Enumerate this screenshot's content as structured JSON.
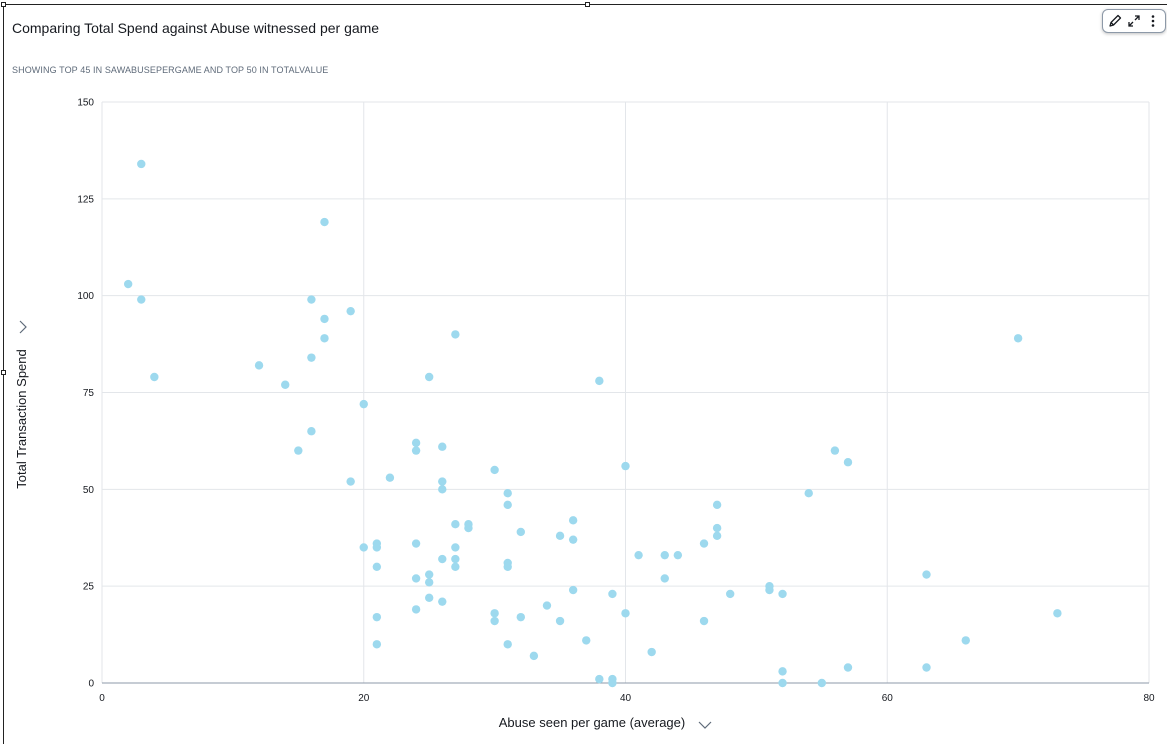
{
  "visual": {
    "title": "Comparing Total Spend against Abuse witnessed per game",
    "subtitle": "SHOWING TOP 45 IN SAWABUSEPERGAME AND TOP 50 IN TOTALVALUE"
  },
  "toolbar": {
    "icons": [
      "pencil-icon",
      "expand-icon",
      "more-vertical-icon"
    ]
  },
  "colors": {
    "point": "#9dd9ee",
    "grid": "#e3e6ea",
    "axis": "#16191f"
  },
  "chart_data": {
    "type": "scatter",
    "title": "Comparing Total Spend against Abuse witnessed per game",
    "xlabel": "Abuse seen per game (average)",
    "ylabel": "Total Transaction Spend",
    "xlim": [
      0,
      80
    ],
    "ylim": [
      0,
      150
    ],
    "xticks": [
      0,
      20,
      40,
      60,
      80
    ],
    "yticks": [
      0,
      25,
      50,
      75,
      100,
      125,
      150
    ],
    "grid": true,
    "x": [
      3,
      2,
      3,
      4,
      17,
      16,
      17,
      17,
      16,
      19,
      12,
      14,
      20,
      16,
      15,
      27,
      25,
      38,
      24,
      24,
      26,
      19,
      22,
      26,
      26,
      30,
      40,
      20,
      21,
      21,
      24,
      27,
      28,
      28,
      27,
      26,
      27,
      27,
      21,
      24,
      25,
      25,
      25,
      24,
      26,
      21,
      21,
      31,
      31,
      31,
      31,
      30,
      30,
      32,
      32,
      31,
      33,
      34,
      35,
      35,
      36,
      36,
      36,
      37,
      38,
      39,
      39,
      39,
      40,
      41,
      42,
      43,
      43,
      44,
      46,
      46,
      47,
      47,
      47,
      48,
      51,
      51,
      52,
      52,
      52,
      54,
      55,
      56,
      57,
      57,
      63,
      63,
      66,
      70,
      73
    ],
    "y": [
      134,
      103,
      99,
      79,
      119,
      99,
      94,
      89,
      84,
      96,
      82,
      77,
      72,
      65,
      60,
      90,
      79,
      78,
      62,
      60,
      61,
      52,
      53,
      52,
      50,
      55,
      56,
      35,
      36,
      35,
      36,
      41,
      41,
      40,
      35,
      32,
      32,
      30,
      30,
      27,
      28,
      26,
      22,
      19,
      21,
      17,
      10,
      49,
      46,
      31,
      30,
      18,
      16,
      39,
      17,
      10,
      7,
      20,
      38,
      16,
      42,
      37,
      24,
      11,
      1,
      1,
      0,
      23,
      18,
      33,
      8,
      33,
      27,
      33,
      36,
      16,
      46,
      40,
      38,
      23,
      25,
      24,
      23,
      3,
      0,
      49,
      0,
      60,
      57,
      4,
      28,
      4,
      11,
      89,
      18
    ]
  }
}
